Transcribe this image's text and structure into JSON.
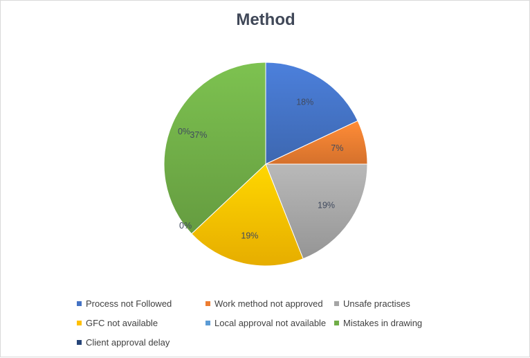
{
  "chart_data": {
    "type": "pie",
    "title": "Method",
    "slices": [
      {
        "name": "Process not Followed",
        "value": 18,
        "label": "18%",
        "color": "#4472c4"
      },
      {
        "name": "Work method not approved",
        "value": 7,
        "label": "7%",
        "color": "#ed7d31"
      },
      {
        "name": "Unsafe practises",
        "value": 19,
        "label": "19%",
        "color": "#a5a5a5"
      },
      {
        "name": "GFC not available",
        "value": 19,
        "label": "19%",
        "color": "#ffc000"
      },
      {
        "name": "Local approval not available",
        "value": 0,
        "label": "0%",
        "color": "#5b9bd5"
      },
      {
        "name": "Mistakes in drawing",
        "value": 37,
        "label": "37%",
        "color": "#70ad47"
      },
      {
        "name": "Client approval delay",
        "value": 0,
        "label": "0%",
        "color": "#264478"
      }
    ],
    "legend_placement": "bottom",
    "data_labels": "percent"
  }
}
